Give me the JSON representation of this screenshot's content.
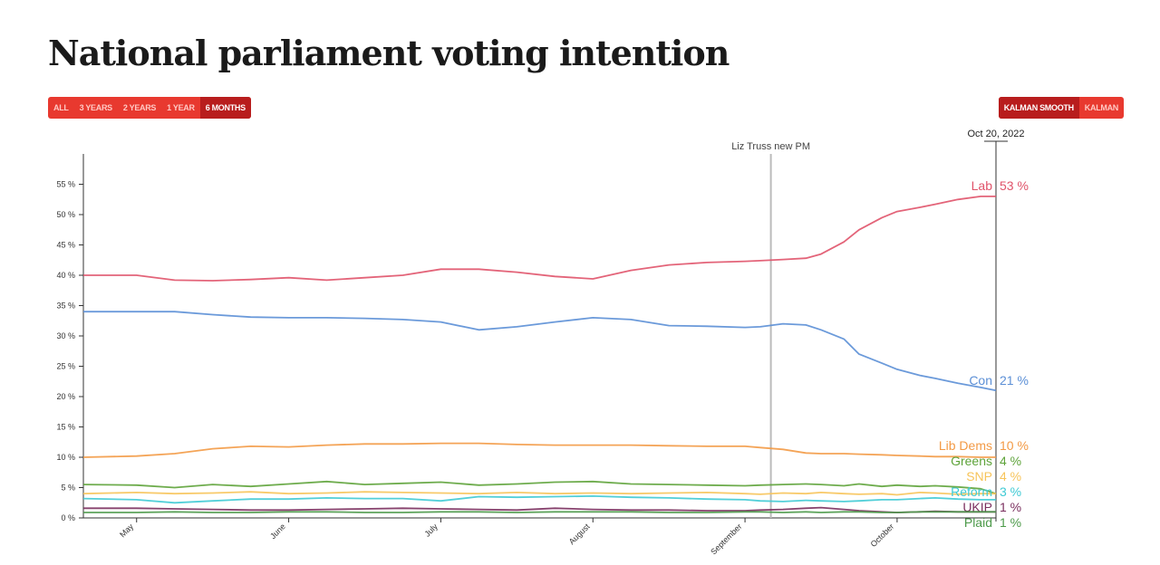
{
  "page_title": "National parliament voting intention",
  "range_buttons": [
    {
      "label": "ALL",
      "active": false
    },
    {
      "label": "3 YEARS",
      "active": false
    },
    {
      "label": "2 YEARS",
      "active": false
    },
    {
      "label": "1 YEAR",
      "active": false
    },
    {
      "label": "6 MONTHS",
      "active": true
    }
  ],
  "smoothing_buttons": [
    {
      "label": "KALMAN SMOOTH",
      "active": true
    },
    {
      "label": "KALMAN",
      "active": false
    }
  ],
  "chart_data": {
    "type": "line",
    "title": "National parliament voting intention",
    "xlabel": "",
    "ylabel": "",
    "ylim": [
      0,
      60
    ],
    "y_ticks": [
      0,
      5,
      10,
      15,
      20,
      25,
      30,
      35,
      40,
      45,
      50,
      55
    ],
    "y_tick_suffix": " %",
    "x_month_labels": [
      "May",
      "June",
      "July",
      "August",
      "September",
      "October"
    ],
    "x_month_positions": [
      1.0,
      2.0,
      3.0,
      4.0,
      5.0,
      6.0
    ],
    "x_range": [
      0.65,
      6.65
    ],
    "x": [
      0.65,
      1.0,
      1.25,
      1.5,
      1.75,
      2.0,
      2.25,
      2.5,
      2.75,
      3.0,
      3.25,
      3.5,
      3.75,
      4.0,
      4.25,
      4.5,
      4.75,
      5.0,
      5.1,
      5.25,
      5.4,
      5.5,
      5.65,
      5.75,
      5.9,
      6.0,
      6.15,
      6.25,
      6.4,
      6.55,
      6.65
    ],
    "cursor": {
      "label": "Oct 20, 2022",
      "x": 6.65
    },
    "annotations": [
      {
        "label": "Liz Truss new PM",
        "x": 5.17
      }
    ],
    "series": [
      {
        "name": "Lab",
        "value_label": "53 %",
        "color": "#e0536a",
        "values": [
          40,
          40,
          39.2,
          39.1,
          39.3,
          39.6,
          39.2,
          39.6,
          40,
          41,
          41,
          40.5,
          39.8,
          39.4,
          40.8,
          41.7,
          42.1,
          42.3,
          42.4,
          42.6,
          42.8,
          43.5,
          45.5,
          47.5,
          49.5,
          50.5,
          51.2,
          51.7,
          52.5,
          53,
          53
        ]
      },
      {
        "name": "Con",
        "value_label": "21 %",
        "color": "#5b8fd6",
        "values": [
          34,
          34,
          34,
          33.5,
          33.1,
          33,
          33,
          32.9,
          32.7,
          32.3,
          31,
          31.5,
          32.3,
          33,
          32.7,
          31.7,
          31.6,
          31.4,
          31.5,
          32,
          31.8,
          31,
          29.5,
          27,
          25.5,
          24.5,
          23.5,
          23,
          22.2,
          21.5,
          21
        ]
      },
      {
        "name": "Lib Dems",
        "value_label": "10 %",
        "color": "#f39a45",
        "values": [
          10,
          10.2,
          10.6,
          11.4,
          11.8,
          11.7,
          12,
          12.2,
          12.2,
          12.3,
          12.3,
          12.1,
          12,
          12,
          12,
          11.9,
          11.8,
          11.8,
          11.6,
          11.3,
          10.7,
          10.6,
          10.6,
          10.5,
          10.4,
          10.3,
          10.2,
          10.1,
          10.1,
          10,
          10
        ]
      },
      {
        "name": "Greens",
        "value_label": "4 %",
        "color": "#5ea33a",
        "values": [
          5.5,
          5.4,
          5,
          5.5,
          5.2,
          5.6,
          6,
          5.5,
          5.7,
          5.9,
          5.4,
          5.6,
          5.9,
          6,
          5.6,
          5.5,
          5.4,
          5.3,
          5.4,
          5.5,
          5.6,
          5.5,
          5.3,
          5.6,
          5.2,
          5.4,
          5.2,
          5.3,
          5.1,
          4.8,
          4
        ]
      },
      {
        "name": "SNP",
        "value_label": "4 %",
        "color": "#f7c45a",
        "values": [
          4,
          4.2,
          4,
          4.1,
          4.3,
          4,
          4.1,
          4.3,
          4.2,
          4.1,
          4,
          4.2,
          4,
          4.1,
          4,
          4.1,
          4.2,
          4,
          3.9,
          4.1,
          4,
          4.2,
          4,
          3.9,
          4,
          3.8,
          4.2,
          4.1,
          3.9,
          4,
          4
        ]
      },
      {
        "name": "Reform",
        "value_label": "3 %",
        "color": "#3fcad4",
        "values": [
          3.2,
          3,
          2.5,
          2.8,
          3.1,
          3.1,
          3.3,
          3.2,
          3.2,
          2.8,
          3.5,
          3.4,
          3.5,
          3.6,
          3.4,
          3.3,
          3.1,
          3,
          2.8,
          2.7,
          2.9,
          2.8,
          2.7,
          2.8,
          3,
          3,
          3.2,
          3.3,
          3.1,
          3,
          3
        ]
      },
      {
        "name": "UKIP",
        "value_label": "1 %",
        "color": "#7a2f5e",
        "values": [
          1.6,
          1.6,
          1.5,
          1.4,
          1.3,
          1.3,
          1.4,
          1.5,
          1.6,
          1.5,
          1.4,
          1.3,
          1.6,
          1.4,
          1.3,
          1.3,
          1.2,
          1.2,
          1.3,
          1.4,
          1.6,
          1.7,
          1.4,
          1.2,
          1,
          0.9,
          1,
          1.1,
          1,
          1,
          1
        ]
      },
      {
        "name": "Plaid",
        "value_label": "1 %",
        "color": "#4d9a4a",
        "values": [
          0.9,
          0.9,
          1,
          0.9,
          0.9,
          1,
          1,
          0.9,
          0.9,
          1,
          1,
          0.9,
          1,
          1,
          1,
          0.9,
          0.9,
          1,
          1,
          0.9,
          1,
          0.9,
          1,
          1,
          0.9,
          0.9,
          1,
          1,
          1,
          1,
          1
        ]
      }
    ]
  }
}
